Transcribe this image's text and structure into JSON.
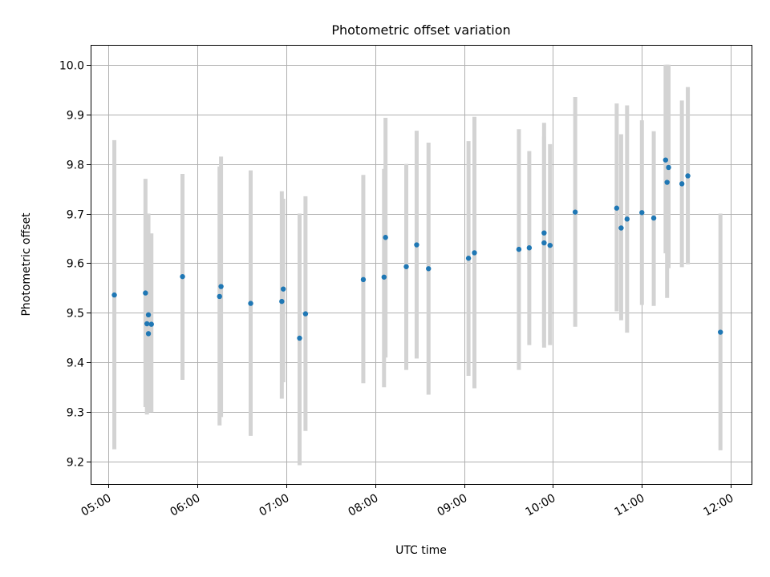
{
  "chart_data": {
    "type": "scatter",
    "title": "Photometric offset variation",
    "xlabel": "UTC time",
    "ylabel": "Photometric offset",
    "x_unit": "UTC time (HH:MM)",
    "xlim": [
      "04:48",
      "12:14"
    ],
    "ylim": [
      9.155,
      10.04
    ],
    "grid": true,
    "x_ticks": [
      "05:00",
      "06:00",
      "07:00",
      "08:00",
      "09:00",
      "10:00",
      "11:00",
      "12:00"
    ],
    "y_ticks": [
      "9.2",
      "9.3",
      "9.4",
      "9.5",
      "9.6",
      "9.7",
      "9.8",
      "9.9",
      "10.0"
    ],
    "errorbar_color": "#d3d3d3",
    "point_color": "#1f77b4",
    "points": [
      {
        "x": "05:04",
        "y": 9.536,
        "ylo": 9.225,
        "yhi": 9.848
      },
      {
        "x": "05:25",
        "y": 9.54,
        "ylo": 9.31,
        "yhi": 9.77
      },
      {
        "x": "05:26",
        "y": 9.478,
        "ylo": 9.295,
        "yhi": 9.7
      },
      {
        "x": "05:27",
        "y": 9.458,
        "ylo": 9.3,
        "yhi": 9.66
      },
      {
        "x": "05:27",
        "y": 9.496,
        "ylo": 9.31,
        "yhi": 9.7
      },
      {
        "x": "05:29",
        "y": 9.477,
        "ylo": 9.3,
        "yhi": 9.66
      },
      {
        "x": "05:50",
        "y": 9.573,
        "ylo": 9.365,
        "yhi": 9.78
      },
      {
        "x": "06:15",
        "y": 9.533,
        "ylo": 9.273,
        "yhi": 9.795
      },
      {
        "x": "06:16",
        "y": 9.553,
        "ylo": 9.29,
        "yhi": 9.815
      },
      {
        "x": "06:36",
        "y": 9.519,
        "ylo": 9.252,
        "yhi": 9.787
      },
      {
        "x": "06:57",
        "y": 9.523,
        "ylo": 9.327,
        "yhi": 9.745
      },
      {
        "x": "06:58",
        "y": 9.548,
        "ylo": 9.36,
        "yhi": 9.73
      },
      {
        "x": "07:09",
        "y": 9.449,
        "ylo": 9.193,
        "yhi": 9.7
      },
      {
        "x": "07:13",
        "y": 9.498,
        "ylo": 9.262,
        "yhi": 9.735
      },
      {
        "x": "07:52",
        "y": 9.567,
        "ylo": 9.358,
        "yhi": 9.778
      },
      {
        "x": "08:06",
        "y": 9.572,
        "ylo": 9.35,
        "yhi": 9.79
      },
      {
        "x": "08:07",
        "y": 9.652,
        "ylo": 9.41,
        "yhi": 9.893
      },
      {
        "x": "08:21",
        "y": 9.593,
        "ylo": 9.385,
        "yhi": 9.8
      },
      {
        "x": "08:28",
        "y": 9.637,
        "ylo": 9.408,
        "yhi": 9.867
      },
      {
        "x": "08:36",
        "y": 9.589,
        "ylo": 9.335,
        "yhi": 9.843
      },
      {
        "x": "09:03",
        "y": 9.61,
        "ylo": 9.373,
        "yhi": 9.846
      },
      {
        "x": "09:07",
        "y": 9.621,
        "ylo": 9.348,
        "yhi": 9.895
      },
      {
        "x": "09:37",
        "y": 9.628,
        "ylo": 9.385,
        "yhi": 9.87
      },
      {
        "x": "09:44",
        "y": 9.631,
        "ylo": 9.435,
        "yhi": 9.826
      },
      {
        "x": "09:54",
        "y": 9.661,
        "ylo": 9.43,
        "yhi": 9.883
      },
      {
        "x": "09:54",
        "y": 9.641,
        "ylo": 9.44,
        "yhi": 9.855
      },
      {
        "x": "09:58",
        "y": 9.636,
        "ylo": 9.435,
        "yhi": 9.84
      },
      {
        "x": "10:15",
        "y": 9.703,
        "ylo": 9.472,
        "yhi": 9.935
      },
      {
        "x": "10:43",
        "y": 9.711,
        "ylo": 9.503,
        "yhi": 9.922
      },
      {
        "x": "10:46",
        "y": 9.671,
        "ylo": 9.485,
        "yhi": 9.86
      },
      {
        "x": "10:50",
        "y": 9.689,
        "ylo": 9.46,
        "yhi": 9.918
      },
      {
        "x": "11:00",
        "y": 9.702,
        "ylo": 9.516,
        "yhi": 9.888
      },
      {
        "x": "11:08",
        "y": 9.691,
        "ylo": 9.514,
        "yhi": 9.866
      },
      {
        "x": "11:16",
        "y": 9.808,
        "ylo": 9.62,
        "yhi": 10.0
      },
      {
        "x": "11:17",
        "y": 9.763,
        "ylo": 9.53,
        "yhi": 10.0
      },
      {
        "x": "11:18",
        "y": 9.793,
        "ylo": 9.59,
        "yhi": 10.0
      },
      {
        "x": "11:27",
        "y": 9.76,
        "ylo": 9.592,
        "yhi": 9.928
      },
      {
        "x": "11:31",
        "y": 9.776,
        "ylo": 9.598,
        "yhi": 9.955
      },
      {
        "x": "11:53",
        "y": 9.461,
        "ylo": 9.223,
        "yhi": 9.7
      }
    ]
  }
}
